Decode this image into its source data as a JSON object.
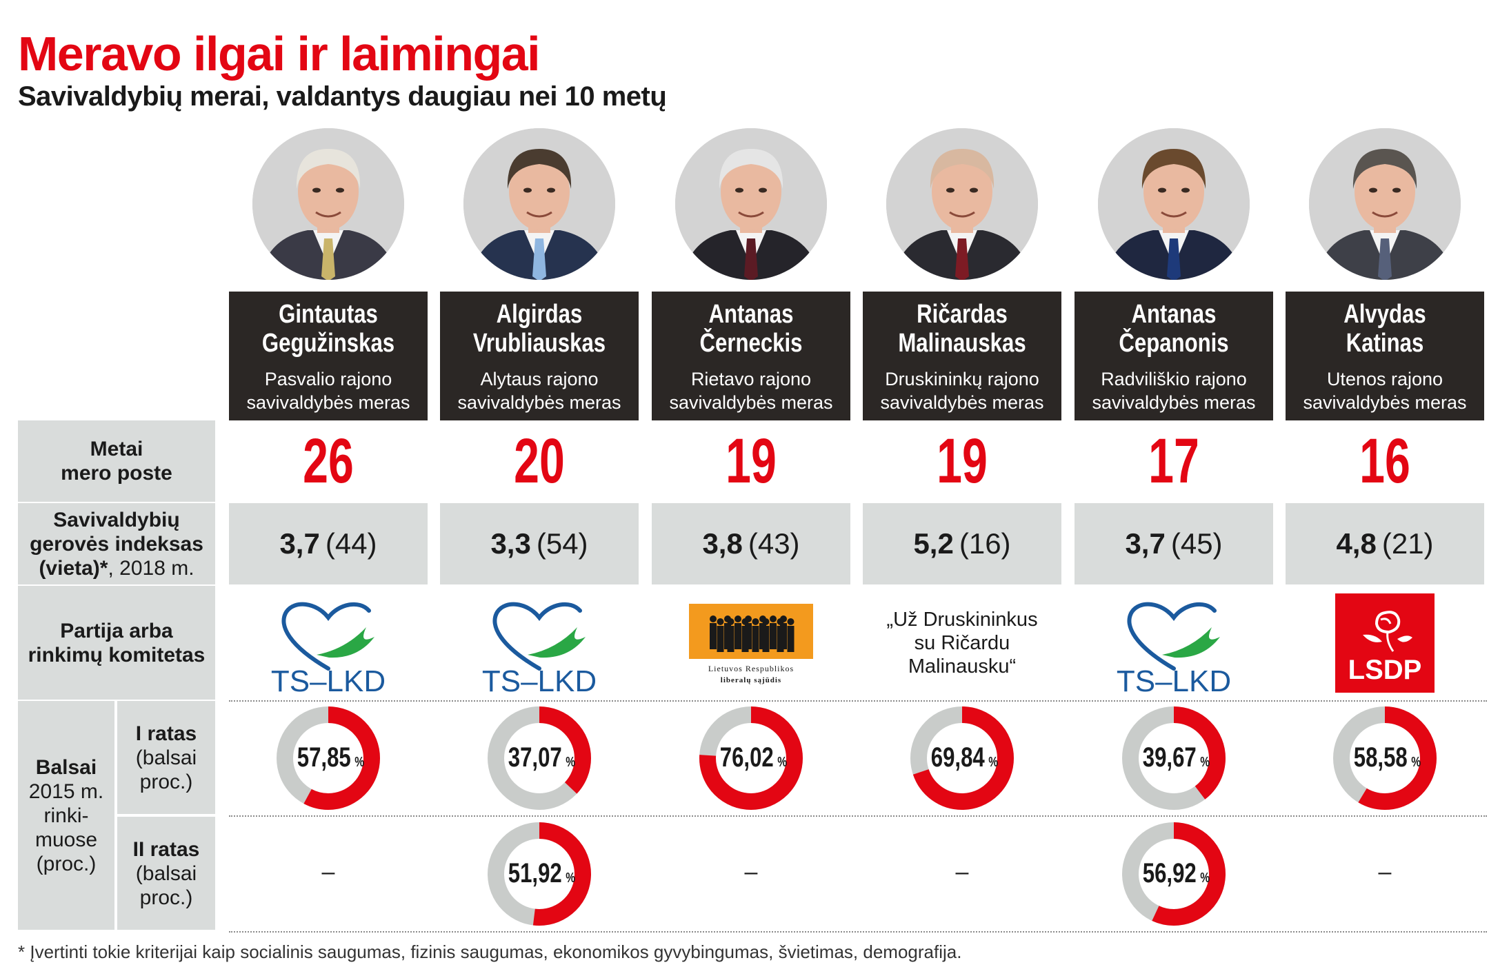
{
  "title": "Meravo ilgai ir laimingai",
  "subtitle": "Savivaldybių merai, valdantys daugiau nei 10 metų",
  "row_labels": {
    "years_line1": "Metai",
    "years_line2": "mero poste",
    "index_line1": "Savivaldybių",
    "index_line2": "gerovės indeksas",
    "index_line3_bold": "(vieta)*",
    "index_line3_rest": ", 2018 m.",
    "party_line1": "Partija arba",
    "party_line2": "rinkimų komitetas",
    "votes_line1": "Balsai",
    "votes_line2": "2015 m.",
    "votes_line3": "rinki-",
    "votes_line4": "muose",
    "votes_line5": "(proc.)",
    "round1_line1": "I ratas",
    "round1_line2": "(balsai",
    "round1_line3": "proc.)",
    "round2_line1": "II ratas",
    "round2_line2": "(balsai",
    "round2_line3": "proc.)"
  },
  "dash": "–",
  "party_texts": {
    "tslkd": "TS–LKD",
    "lrls_line1": "Lietuvos Respublikos",
    "lrls_line2": "liberalų sąjūdis",
    "lsdp": "LSDP",
    "committee_line1": "„Už Druskininkus",
    "committee_line2": "su Ričardu",
    "committee_line3": "Malinausku“"
  },
  "colors": {
    "accent_red": "#e30613",
    "name_box": "#2b2725",
    "gray_cell": "#d9dcdb",
    "donut_rest": "#c9ccca",
    "tslkd_blue": "#1b5a9e",
    "tslkd_green": "#2aa745",
    "lrls_orange": "#f39a1e"
  },
  "mayors": [
    {
      "name_line1": "Gintautas",
      "name_line2": "Gegužinskas",
      "role_line1": "Pasvalio rajono",
      "role_line2": "savivaldybės meras",
      "years": "26",
      "index_value": "3,7",
      "index_rank": "(44)",
      "party": "tslkd",
      "round1": "57,85",
      "round2": null
    },
    {
      "name_line1": "Algirdas",
      "name_line2": "Vrubliauskas",
      "role_line1": "Alytaus rajono",
      "role_line2": "savivaldybės meras",
      "years": "20",
      "index_value": "3,3",
      "index_rank": "(54)",
      "party": "tslkd",
      "round1": "37,07",
      "round2": "51,92"
    },
    {
      "name_line1": "Antanas",
      "name_line2": "Černeckis",
      "role_line1": "Rietavo rajono",
      "role_line2": "savivaldybės meras",
      "years": "19",
      "index_value": "3,8",
      "index_rank": "(43)",
      "party": "lrls",
      "round1": "76,02",
      "round2": null
    },
    {
      "name_line1": "Ričardas",
      "name_line2": "Malinauskas",
      "role_line1": "Druskininkų rajono",
      "role_line2": "savivaldybės meras",
      "years": "19",
      "index_value": "5,2",
      "index_rank": "(16)",
      "party": "committee",
      "round1": "69,84",
      "round2": null
    },
    {
      "name_line1": "Antanas",
      "name_line2": "Čepanonis",
      "role_line1": "Radviliškio rajono",
      "role_line2": "savivaldybės meras",
      "years": "17",
      "index_value": "3,7",
      "index_rank": "(45)",
      "party": "tslkd",
      "round1": "39,67",
      "round2": "56,92"
    },
    {
      "name_line1": "Alvydas",
      "name_line2": "Katinas",
      "role_line1": "Utenos rajono",
      "role_line2": "savivaldybės meras",
      "years": "16",
      "index_value": "4,8",
      "index_rank": "(21)",
      "party": "lsdp",
      "round1": "58,58",
      "round2": null
    }
  ],
  "chart_data": {
    "type": "table",
    "title": "Meravo ilgai ir laimingai",
    "subtitle": "Savivaldybių merai, valdantys daugiau nei 10 metų",
    "categories": [
      "Gintautas Gegužinskas",
      "Algirdas Vrubliauskas",
      "Antanas Černeckis",
      "Ričardas Malinauskas",
      "Antanas Čepanonis",
      "Alvydas Katinas"
    ],
    "series": [
      {
        "name": "Metai mero poste",
        "values": [
          26,
          20,
          19,
          19,
          17,
          16
        ]
      },
      {
        "name": "Savivaldybių gerovės indeksas (vieta)*, 2018 m.",
        "values": [
          3.7,
          3.3,
          3.8,
          5.2,
          3.7,
          4.8
        ],
        "ranks": [
          44,
          54,
          43,
          16,
          45,
          21
        ]
      },
      {
        "name": "I ratas (balsai proc.)",
        "values": [
          57.85,
          37.07,
          76.02,
          69.84,
          39.67,
          58.58
        ]
      },
      {
        "name": "II ratas (balsai proc.)",
        "values": [
          null,
          51.92,
          null,
          null,
          56.92,
          null
        ]
      }
    ],
    "unit": "%"
  },
  "footnote": "* Įvertinti tokie kriterijai kaip socialinis saugumas, fizinis saugumas, ekonomikos gyvybingumas, švietimas, demografija."
}
